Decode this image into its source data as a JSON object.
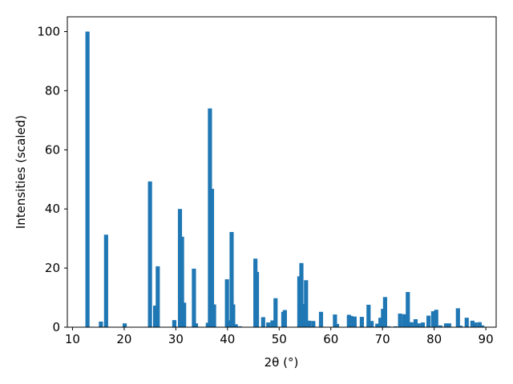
{
  "chart_data": {
    "type": "bar",
    "title": "",
    "xlabel": "2θ (°)",
    "ylabel": "Intensities (scaled)",
    "xlim": [
      9,
      92
    ],
    "ylim": [
      0,
      105
    ],
    "grid": false,
    "legend": "none",
    "bar_color": "#1f77b4",
    "bar_width": 0.8,
    "x_ticks": [
      10,
      20,
      30,
      40,
      50,
      60,
      70,
      80,
      90
    ],
    "y_ticks": [
      0,
      20,
      40,
      60,
      80,
      100
    ],
    "series": [
      {
        "x": [
          12.9,
          15.5,
          16.5,
          20.1,
          25.0,
          26.0,
          26.5,
          29.7,
          30.8,
          31.2,
          31.6,
          33.5,
          33.9,
          36.2,
          36.6,
          37.0,
          37.4,
          39.9,
          40.2,
          40.8,
          41.1,
          41.6,
          42.4,
          45.4,
          45.7,
          46.9,
          47.9,
          48.7,
          49.3,
          50.8,
          51.1,
          53.9,
          54.3,
          54.7,
          55.2,
          55.8,
          56.6,
          58.1,
          60.8,
          61.2,
          63.5,
          63.9,
          64.6,
          66.0,
          67.3,
          67.9,
          69.0,
          69.6,
          70.1,
          70.5,
          71.2,
          72.5,
          73.4,
          74.2,
          74.9,
          75.6,
          76.4,
          77.0,
          77.8,
          78.9,
          79.8,
          80.4,
          81.2,
          82.3,
          82.9,
          84.6,
          85.1,
          86.3,
          87.4,
          88.0,
          88.8,
          89.3
        ],
        "values": [
          100,
          1.9,
          31.3,
          1.3,
          49.3,
          7.3,
          20.6,
          2.4,
          40.0,
          30.6,
          8.3,
          19.8,
          1.3,
          1.5,
          74.0,
          46.8,
          7.7,
          16.2,
          2.3,
          32.2,
          7.7,
          1.0,
          0.3,
          23.2,
          18.7,
          3.4,
          1.6,
          2.3,
          9.8,
          5.2,
          5.8,
          17.2,
          21.7,
          7.8,
          15.9,
          2.2,
          2.1,
          5.2,
          4.3,
          1.1,
          4.2,
          3.8,
          3.6,
          3.5,
          7.6,
          2.1,
          1.2,
          3.2,
          6.2,
          10.2,
          0.3,
          0.3,
          4.6,
          4.4,
          11.9,
          1.7,
          2.7,
          1.3,
          1.6,
          3.9,
          5.4,
          5.9,
          0.6,
          1.3,
          1.3,
          6.4,
          0.5,
          3.2,
          2.2,
          1.6,
          1.7,
          0.6
        ]
      }
    ]
  }
}
